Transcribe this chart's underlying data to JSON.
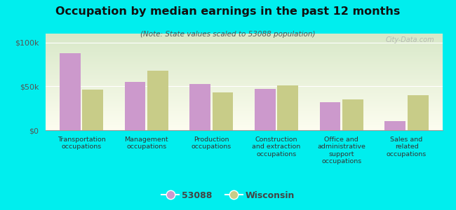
{
  "title": "Occupation by median earnings in the past 12 months",
  "subtitle": "(Note: State values scaled to 53088 population)",
  "categories": [
    "Transportation\noccupations",
    "Management\noccupations",
    "Production\noccupations",
    "Construction\nand extraction\noccupations",
    "Office and\nadministrative\nsupport\noccupations",
    "Sales and\nrelated\noccupations"
  ],
  "values_53088": [
    88000,
    55000,
    53000,
    47000,
    32000,
    10000
  ],
  "values_wisconsin": [
    46000,
    68000,
    43000,
    51000,
    35000,
    40000
  ],
  "color_53088": "#cc99cc",
  "color_wisconsin": "#c8cc88",
  "background_color": "#00eeee",
  "grad_top": "#d8e8c8",
  "grad_bottom": "#fdfdf0",
  "ylim": [
    0,
    110000
  ],
  "yticks": [
    0,
    50000,
    100000
  ],
  "yticklabels": [
    "$0",
    "$50k",
    "$100k"
  ],
  "watermark": "City-Data.com",
  "legend_53088": "53088",
  "legend_wisconsin": "Wisconsin",
  "bar_width": 0.32,
  "bar_gap": 0.03
}
